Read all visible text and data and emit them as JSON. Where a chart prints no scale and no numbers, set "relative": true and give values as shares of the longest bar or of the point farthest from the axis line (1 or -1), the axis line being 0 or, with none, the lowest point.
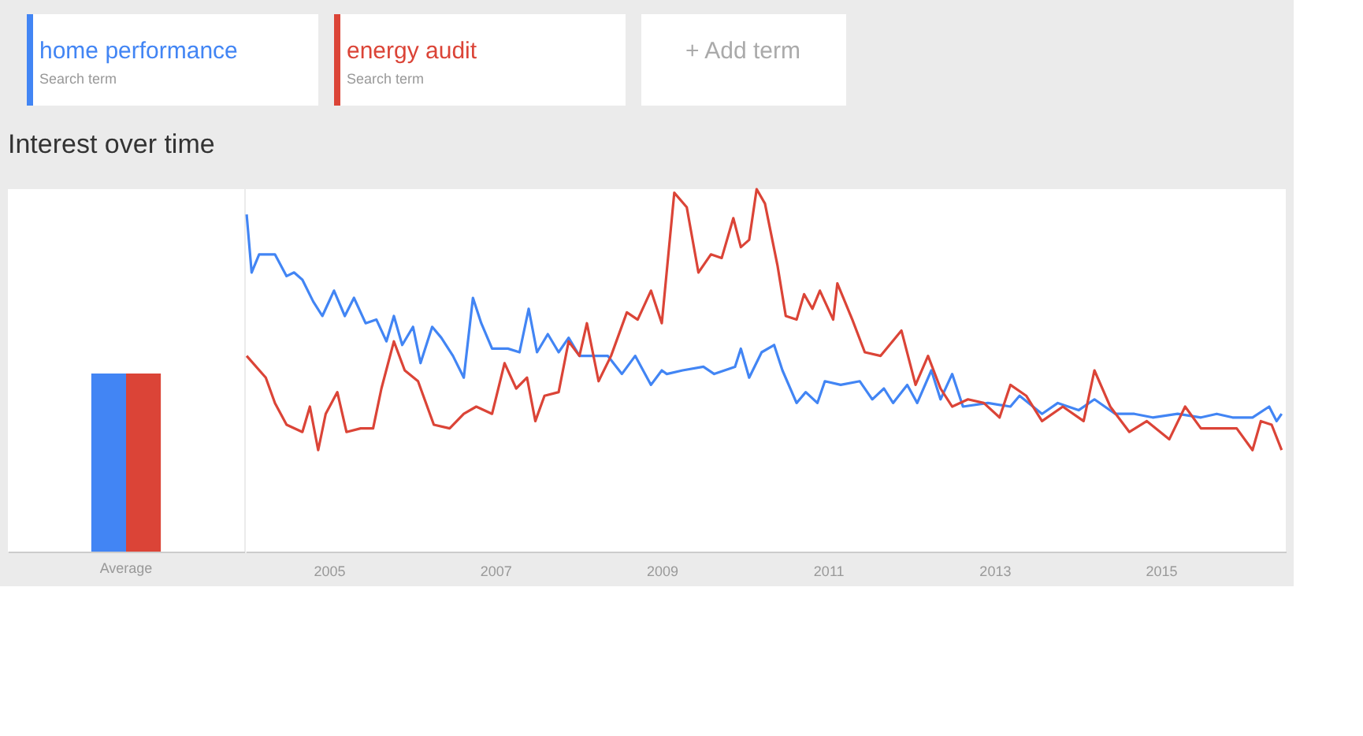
{
  "chart_data": [
    {
      "type": "bar",
      "title": "Interest over time",
      "categories": [
        "Average"
      ],
      "relative": true,
      "series": [
        {
          "color": "#4285f4",
          "values": [
            1
          ]
        },
        {
          "color": "#db4437",
          "values": [
            1
          ]
        }
      ]
    },
    {
      "type": "line",
      "legend": "top left",
      "annotations": [
        "Search term",
        "Search term",
        "+ Add term"
      ],
      "relative": true,
      "xlim": [
        2004,
        2016.5
      ],
      "xticks": [
        2005,
        2007,
        2009,
        2011,
        2013,
        2015
      ],
      "series": [
        {
          "name": "home performance",
          "color": "#4285f4",
          "x": [
            2004.01,
            2004.07,
            2004.16,
            2004.35,
            2004.49,
            2004.58,
            2004.68,
            2004.81,
            2004.92,
            2005.06,
            2005.19,
            2005.3,
            2005.44,
            2005.57,
            2005.69,
            2005.78,
            2005.88,
            2006.01,
            2006.1,
            2006.24,
            2006.35,
            2006.49,
            2006.62,
            2006.73,
            2006.83,
            2006.96,
            2007.15,
            2007.29,
            2007.4,
            2007.5,
            2007.63,
            2007.76,
            2007.88,
            2008.01,
            2008.16,
            2008.35,
            2008.52,
            2008.68,
            2008.87,
            2009.0,
            2009.06,
            2009.25,
            2009.5,
            2009.63,
            2009.88,
            2009.95,
            2010.05,
            2010.2,
            2010.35,
            2010.45,
            2010.62,
            2010.73,
            2010.87,
            2010.96,
            2011.15,
            2011.38,
            2011.53,
            2011.67,
            2011.78,
            2011.95,
            2012.07,
            2012.24,
            2012.35,
            2012.49,
            2012.62,
            2012.92,
            2013.19,
            2013.3,
            2013.57,
            2013.76,
            2014.01,
            2014.2,
            2014.45,
            2014.68,
            2014.9,
            2015.2,
            2015.48,
            2015.67,
            2015.86,
            2016.1,
            2016.3,
            2016.39,
            2016.45
          ],
          "values": [
            0.93,
            0.77,
            0.82,
            0.82,
            0.76,
            0.77,
            0.75,
            0.69,
            0.65,
            0.72,
            0.65,
            0.7,
            0.63,
            0.64,
            0.58,
            0.65,
            0.57,
            0.62,
            0.52,
            0.62,
            0.59,
            0.54,
            0.48,
            0.7,
            0.63,
            0.56,
            0.56,
            0.55,
            0.67,
            0.55,
            0.6,
            0.55,
            0.59,
            0.54,
            0.54,
            0.54,
            0.49,
            0.54,
            0.46,
            0.5,
            0.49,
            0.5,
            0.51,
            0.49,
            0.51,
            0.56,
            0.48,
            0.55,
            0.57,
            0.5,
            0.41,
            0.44,
            0.41,
            0.47,
            0.46,
            0.47,
            0.42,
            0.45,
            0.41,
            0.46,
            0.41,
            0.5,
            0.42,
            0.49,
            0.4,
            0.41,
            0.4,
            0.43,
            0.38,
            0.41,
            0.39,
            0.42,
            0.38,
            0.38,
            0.37,
            0.38,
            0.37,
            0.38,
            0.37,
            0.37,
            0.4,
            0.36,
            0.38
          ]
        },
        {
          "name": "energy audit",
          "color": "#db4437",
          "x": [
            2004.01,
            2004.24,
            2004.35,
            2004.49,
            2004.68,
            2004.77,
            2004.87,
            2004.96,
            2005.1,
            2005.21,
            2005.38,
            2005.53,
            2005.63,
            2005.78,
            2005.91,
            2006.07,
            2006.26,
            2006.45,
            2006.62,
            2006.77,
            2006.96,
            2007.11,
            2007.25,
            2007.38,
            2007.48,
            2007.59,
            2007.76,
            2007.88,
            2008.01,
            2008.1,
            2008.24,
            2008.39,
            2008.58,
            2008.71,
            2008.87,
            2009.0,
            2009.15,
            2009.3,
            2009.44,
            2009.59,
            2009.72,
            2009.86,
            2009.95,
            2010.05,
            2010.14,
            2010.24,
            2010.39,
            2010.49,
            2010.62,
            2010.71,
            2010.81,
            2010.9,
            2011.06,
            2011.11,
            2011.29,
            2011.44,
            2011.63,
            2011.88,
            2012.05,
            2012.2,
            2012.35,
            2012.49,
            2012.68,
            2012.87,
            2013.06,
            2013.19,
            2013.38,
            2013.57,
            2013.82,
            2014.07,
            2014.2,
            2014.39,
            2014.62,
            2014.83,
            2015.1,
            2015.29,
            2015.48,
            2015.91,
            2016.1,
            2016.2,
            2016.33,
            2016.45
          ],
          "values": [
            0.54,
            0.48,
            0.41,
            0.35,
            0.33,
            0.4,
            0.28,
            0.38,
            0.44,
            0.33,
            0.34,
            0.34,
            0.45,
            0.58,
            0.5,
            0.47,
            0.35,
            0.34,
            0.38,
            0.4,
            0.38,
            0.52,
            0.45,
            0.48,
            0.36,
            0.43,
            0.44,
            0.58,
            0.54,
            0.63,
            0.47,
            0.54,
            0.66,
            0.64,
            0.72,
            0.63,
            0.99,
            0.95,
            0.77,
            0.82,
            0.81,
            0.92,
            0.84,
            0.86,
            1.0,
            0.96,
            0.79,
            0.65,
            0.64,
            0.71,
            0.67,
            0.72,
            0.64,
            0.74,
            0.64,
            0.55,
            0.54,
            0.61,
            0.46,
            0.54,
            0.45,
            0.4,
            0.42,
            0.41,
            0.37,
            0.46,
            0.43,
            0.36,
            0.4,
            0.36,
            0.5,
            0.4,
            0.33,
            0.36,
            0.31,
            0.4,
            0.34,
            0.34,
            0.28,
            0.36,
            0.35,
            0.28
          ]
        }
      ]
    }
  ]
}
